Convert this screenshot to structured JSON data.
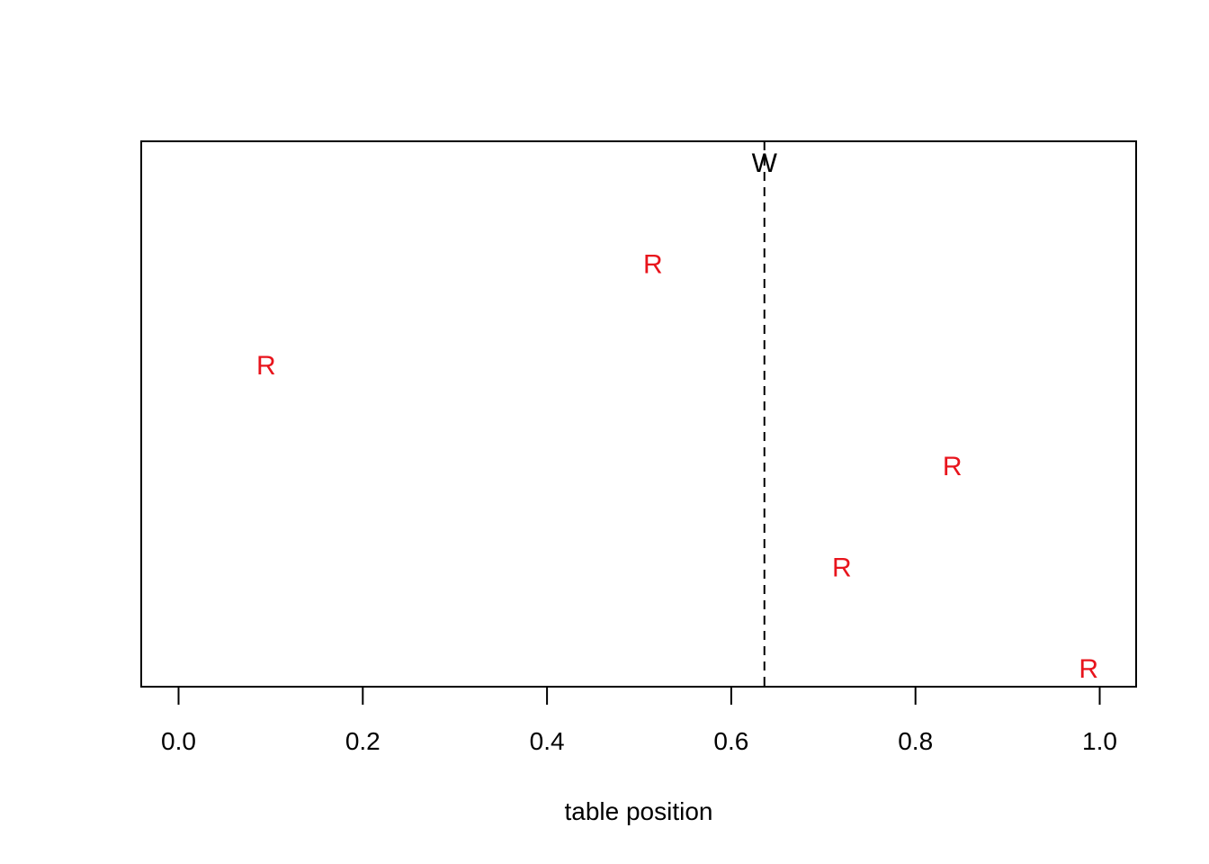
{
  "chart_data": {
    "type": "scatter",
    "title": "",
    "xlabel": "table position",
    "ylabel": "",
    "xlim": [
      -0.04,
      1.04
    ],
    "ylim": [
      0,
      5.4
    ],
    "grid": false,
    "x_ticks": [
      {
        "value": 0.0,
        "label": "0.0"
      },
      {
        "value": 0.2,
        "label": "0.2"
      },
      {
        "value": 0.4,
        "label": "0.4"
      },
      {
        "value": 0.6,
        "label": "0.6"
      },
      {
        "value": 0.8,
        "label": "0.8"
      },
      {
        "value": 1.0,
        "label": "1.0"
      }
    ],
    "points": [
      {
        "x": 0.095,
        "y": 3,
        "label": "R"
      },
      {
        "x": 0.515,
        "y": 4,
        "label": "R"
      },
      {
        "x": 0.84,
        "y": 2,
        "label": "R"
      },
      {
        "x": 0.72,
        "y": 1,
        "label": "R"
      },
      {
        "x": 0.988,
        "y": 0,
        "label": "R"
      }
    ],
    "point_color": "#e8141c",
    "vline": {
      "x": 0.636,
      "label": "W",
      "style": "dashed",
      "color": "#000000"
    }
  }
}
